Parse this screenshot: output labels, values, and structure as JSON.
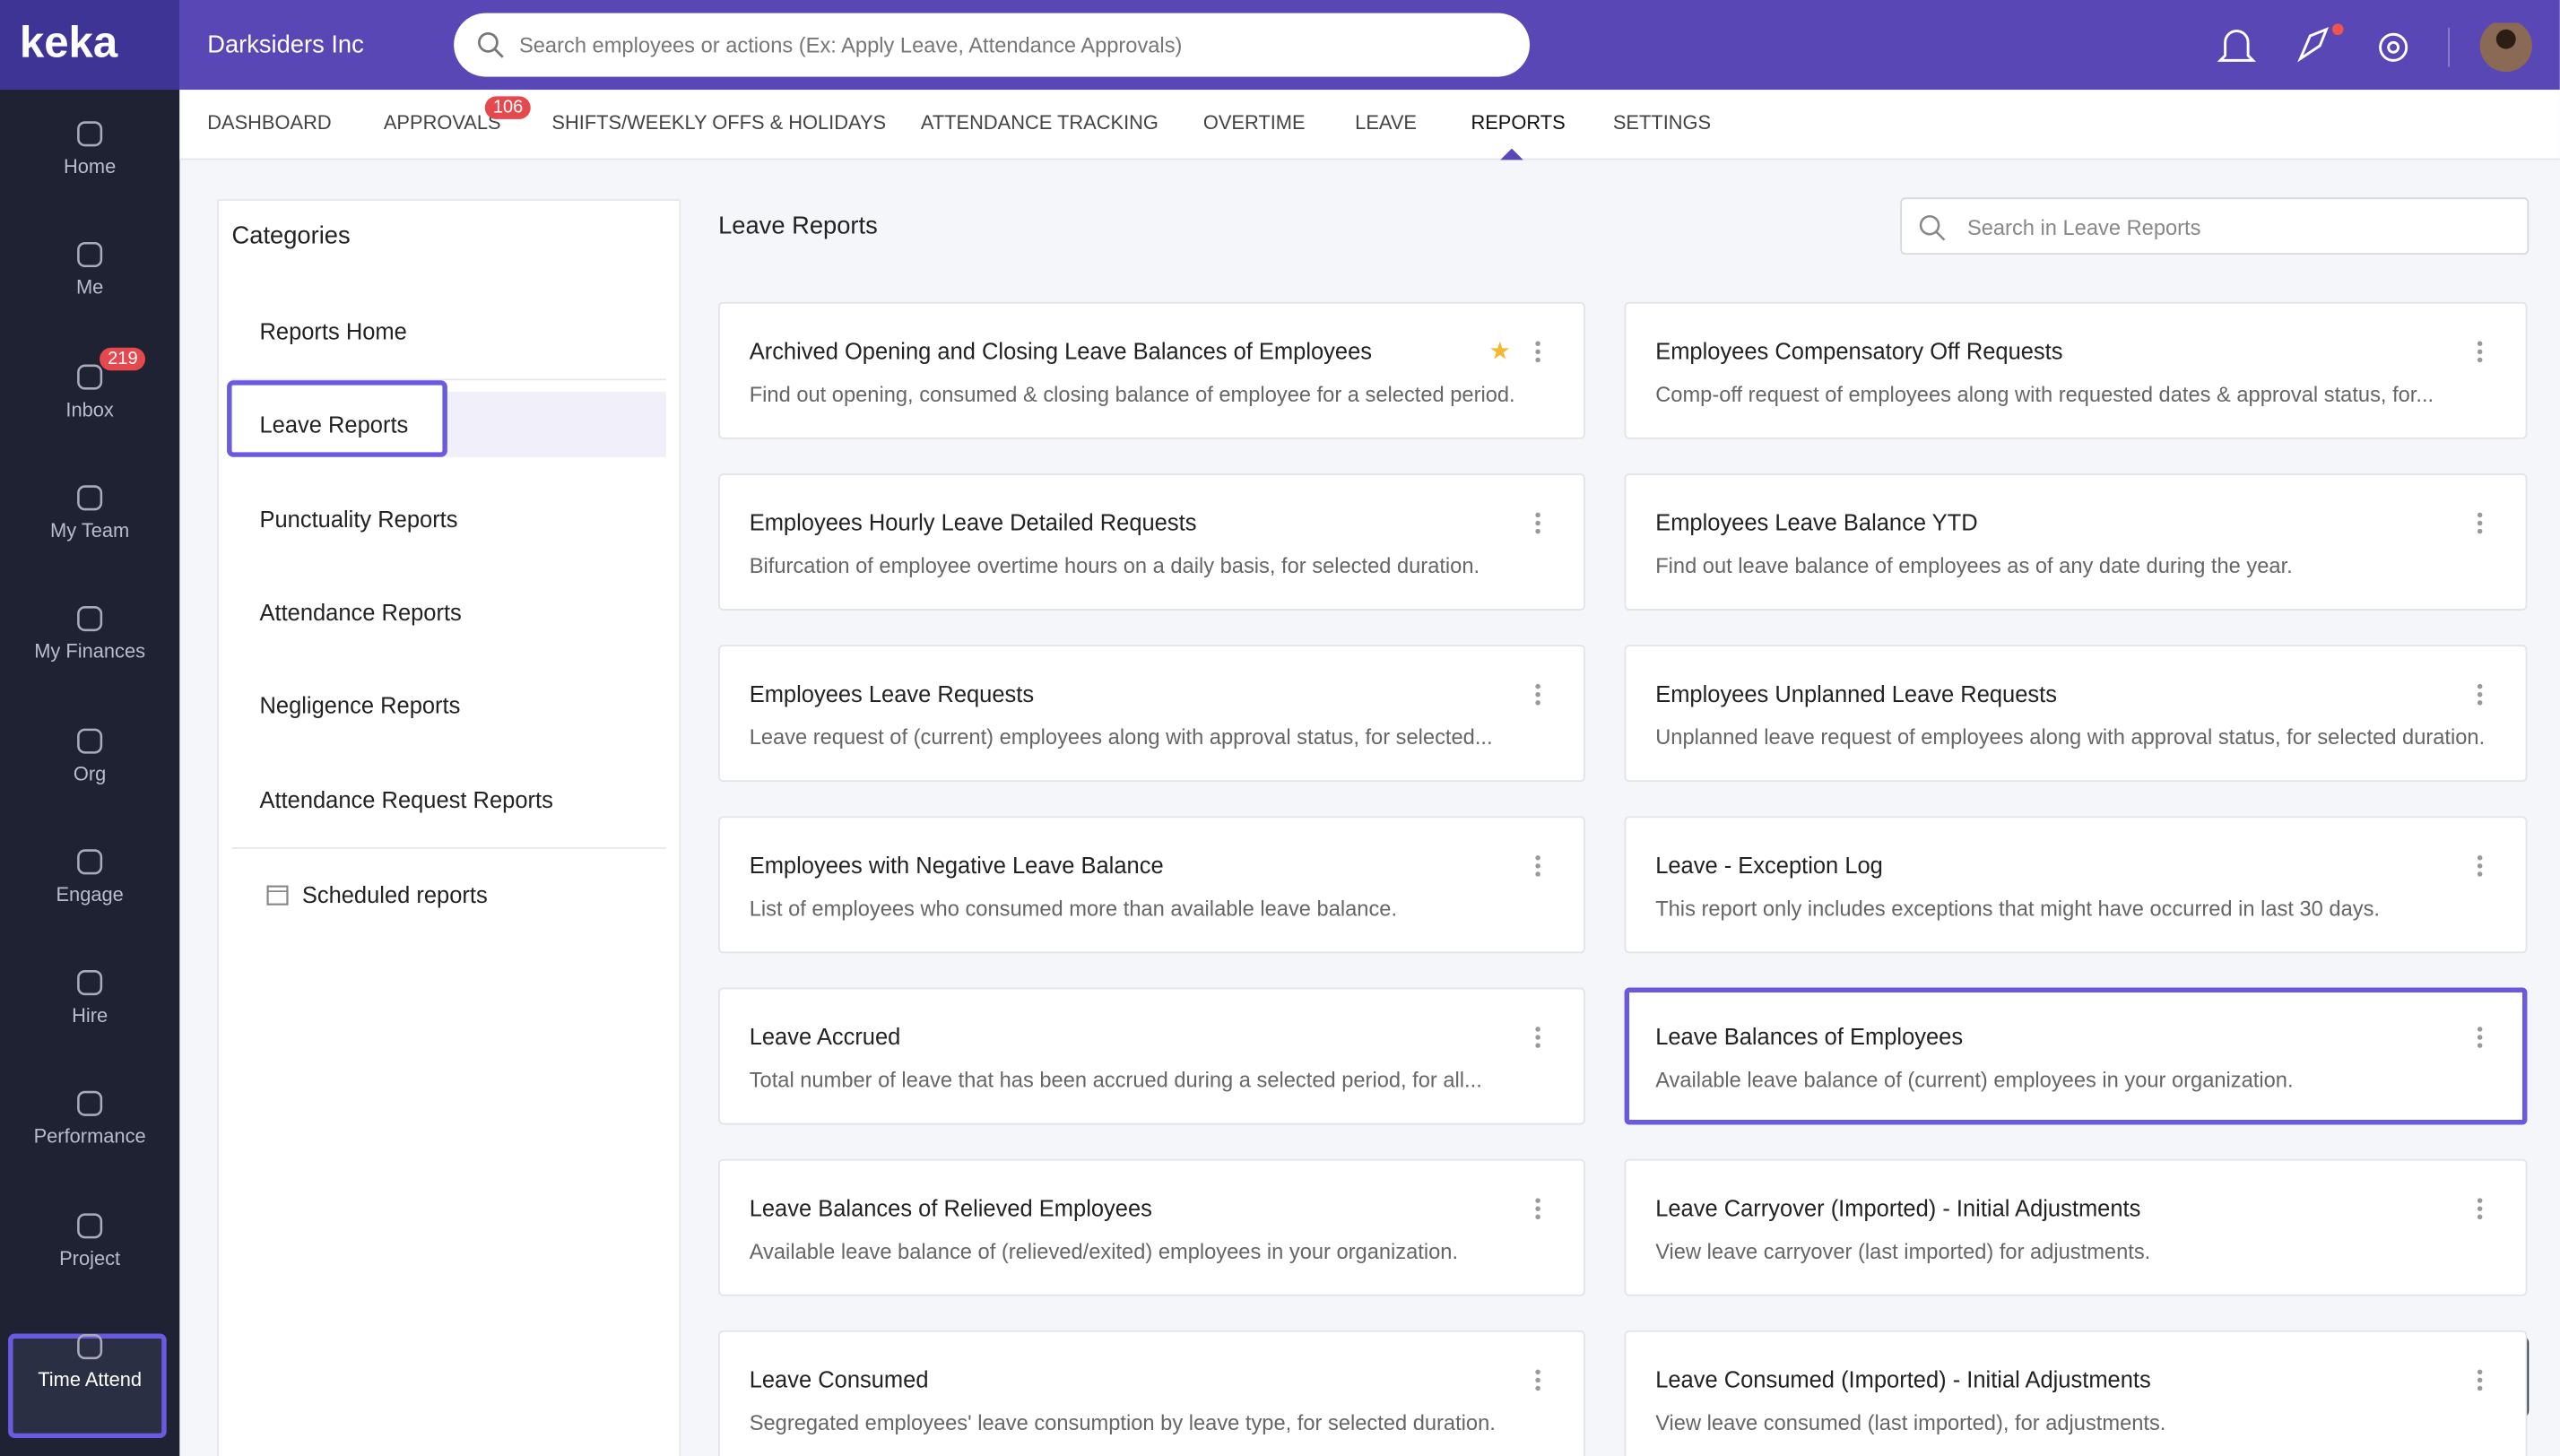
{
  "brand": "keka",
  "company": "Darksiders Inc",
  "search_placeholder": "Search employees or actions (Ex: Apply Leave, Attendance Approvals)",
  "sidebar": [
    {
      "label": "Home"
    },
    {
      "label": "Me"
    },
    {
      "label": "Inbox",
      "badge": 219
    },
    {
      "label": "My Team"
    },
    {
      "label": "My Finances"
    },
    {
      "label": "Org"
    },
    {
      "label": "Engage"
    },
    {
      "label": "Hire"
    },
    {
      "label": "Performance"
    },
    {
      "label": "Project"
    },
    {
      "label": "Time Attend",
      "active": true
    }
  ],
  "tabs": [
    {
      "label": "DASHBOARD"
    },
    {
      "label": "APPROVALS",
      "badge": 106
    },
    {
      "label": "SHIFTS/WEEKLY OFFS & HOLIDAYS"
    },
    {
      "label": "ATTENDANCE TRACKING"
    },
    {
      "label": "OVERTIME"
    },
    {
      "label": "LEAVE"
    },
    {
      "label": "REPORTS",
      "active": true
    },
    {
      "label": "SETTINGS"
    }
  ],
  "categories": {
    "title": "Categories",
    "items": [
      {
        "label": "Reports Home"
      },
      {
        "label": "Leave Reports",
        "active": true
      },
      {
        "label": "Punctuality Reports"
      },
      {
        "label": "Attendance Reports"
      },
      {
        "label": "Negligence Reports"
      },
      {
        "label": "Attendance Request Reports"
      }
    ],
    "scheduled": "Scheduled reports"
  },
  "main": {
    "title": "Leave Reports",
    "search_placeholder": "Search in Leave Reports",
    "reports": [
      {
        "title": "Archived Opening and Closing Leave Balances of Employees",
        "description": "Find out opening, consumed & closing balance of employee for a selected period.",
        "starred": true
      },
      {
        "title": "Employees Compensatory Off Requests",
        "description": "Comp-off request of employees along with requested dates & approval status, for..."
      },
      {
        "title": "Employees Hourly Leave Detailed Requests",
        "description": "Bifurcation of employee overtime hours on a daily basis, for selected duration."
      },
      {
        "title": "Employees Leave Balance YTD",
        "description": "Find out leave balance of employees as of any date during the year."
      },
      {
        "title": "Employees Leave Requests",
        "description": "Leave request of (current) employees along with approval status, for selected..."
      },
      {
        "title": "Employees Unplanned Leave Requests",
        "description": "Unplanned leave request of employees along with approval status, for selected duration."
      },
      {
        "title": "Employees with Negative Leave Balance",
        "description": "List of employees who consumed more than available leave balance."
      },
      {
        "title": "Leave - Exception Log",
        "description": "This report only includes exceptions that might have occurred in last 30 days."
      },
      {
        "title": "Leave Accrued",
        "description": "Total number of leave that has been accrued during a selected period, for all..."
      },
      {
        "title": "Leave Balances of Employees",
        "description": "Available leave balance of (current) employees in your organization.",
        "highlighted": true
      },
      {
        "title": "Leave Balances of Relieved Employees",
        "description": "Available leave balance of (relieved/exited) employees in your organization."
      },
      {
        "title": "Leave Carryover (Imported) - Initial Adjustments",
        "description": "View leave carryover (last imported) for adjustments."
      },
      {
        "title": "Leave Consumed",
        "description": "Segregated employees' leave consumption by leave type, for selected duration."
      },
      {
        "title": "Leave Consumed (Imported) - Initial Adjustments",
        "description": "View leave consumed (last imported), for adjustments."
      }
    ]
  }
}
